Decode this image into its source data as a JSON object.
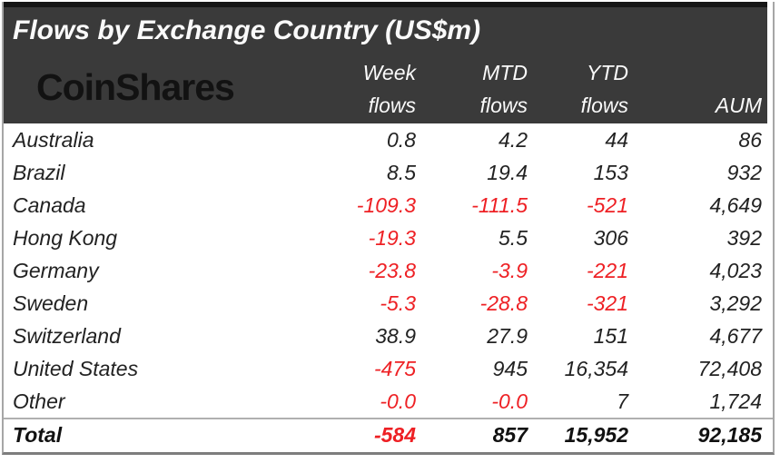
{
  "title": "Flows by Exchange Country (US$m)",
  "logo_text": "CoinShares",
  "colors": {
    "header_bg": "#3a3a3a",
    "header_text": "#fafafa",
    "logo_color": "#121212",
    "text": "#222222",
    "negative": "#ee2024"
  },
  "table": {
    "columns": [
      {
        "line1": "Week",
        "line2": "flows"
      },
      {
        "line1": "MTD",
        "line2": "flows"
      },
      {
        "line1": "YTD",
        "line2": "flows"
      },
      {
        "line1": "",
        "line2": "AUM"
      }
    ],
    "rows": [
      {
        "country": "Australia",
        "values": [
          "0.8",
          "4.2",
          "44",
          "86"
        ]
      },
      {
        "country": "Brazil",
        "values": [
          "8.5",
          "19.4",
          "153",
          "932"
        ]
      },
      {
        "country": "Canada",
        "values": [
          "-109.3",
          "-111.5",
          "-521",
          "4,649"
        ]
      },
      {
        "country": "Hong Kong",
        "values": [
          "-19.3",
          "5.5",
          "306",
          "392"
        ]
      },
      {
        "country": "Germany",
        "values": [
          "-23.8",
          "-3.9",
          "-221",
          "4,023"
        ]
      },
      {
        "country": "Sweden",
        "values": [
          "-5.3",
          "-28.8",
          "-321",
          "3,292"
        ]
      },
      {
        "country": "Switzerland",
        "values": [
          "38.9",
          "27.9",
          "151",
          "4,677"
        ]
      },
      {
        "country": "United States",
        "values": [
          "-475",
          "945",
          "16,354",
          "72,408"
        ]
      },
      {
        "country": "Other",
        "values": [
          "-0.0",
          "-0.0",
          "7",
          "1,724"
        ]
      }
    ],
    "total": {
      "label": "Total",
      "values": [
        "-584",
        "857",
        "15,952",
        "92,185"
      ]
    }
  },
  "chart_data": {
    "type": "table",
    "title": "Flows by Exchange Country (US$m)",
    "units": "US$m",
    "columns": [
      "Country",
      "Week flows",
      "MTD flows",
      "YTD flows",
      "AUM"
    ],
    "rows": [
      [
        "Australia",
        0.8,
        4.2,
        44,
        86
      ],
      [
        "Brazil",
        8.5,
        19.4,
        153,
        932
      ],
      [
        "Canada",
        -109.3,
        -111.5,
        -521,
        4649
      ],
      [
        "Hong Kong",
        -19.3,
        5.5,
        306,
        392
      ],
      [
        "Germany",
        -23.8,
        -3.9,
        -221,
        4023
      ],
      [
        "Sweden",
        -5.3,
        -28.8,
        -321,
        3292
      ],
      [
        "Switzerland",
        38.9,
        27.9,
        151,
        4677
      ],
      [
        "United States",
        -475,
        945,
        16354,
        72408
      ],
      [
        "Other",
        -0.0,
        -0.0,
        7,
        1724
      ]
    ],
    "total_row": [
      "Total",
      -584,
      857,
      15952,
      92185
    ],
    "negative_values_color": "#ee2024"
  }
}
